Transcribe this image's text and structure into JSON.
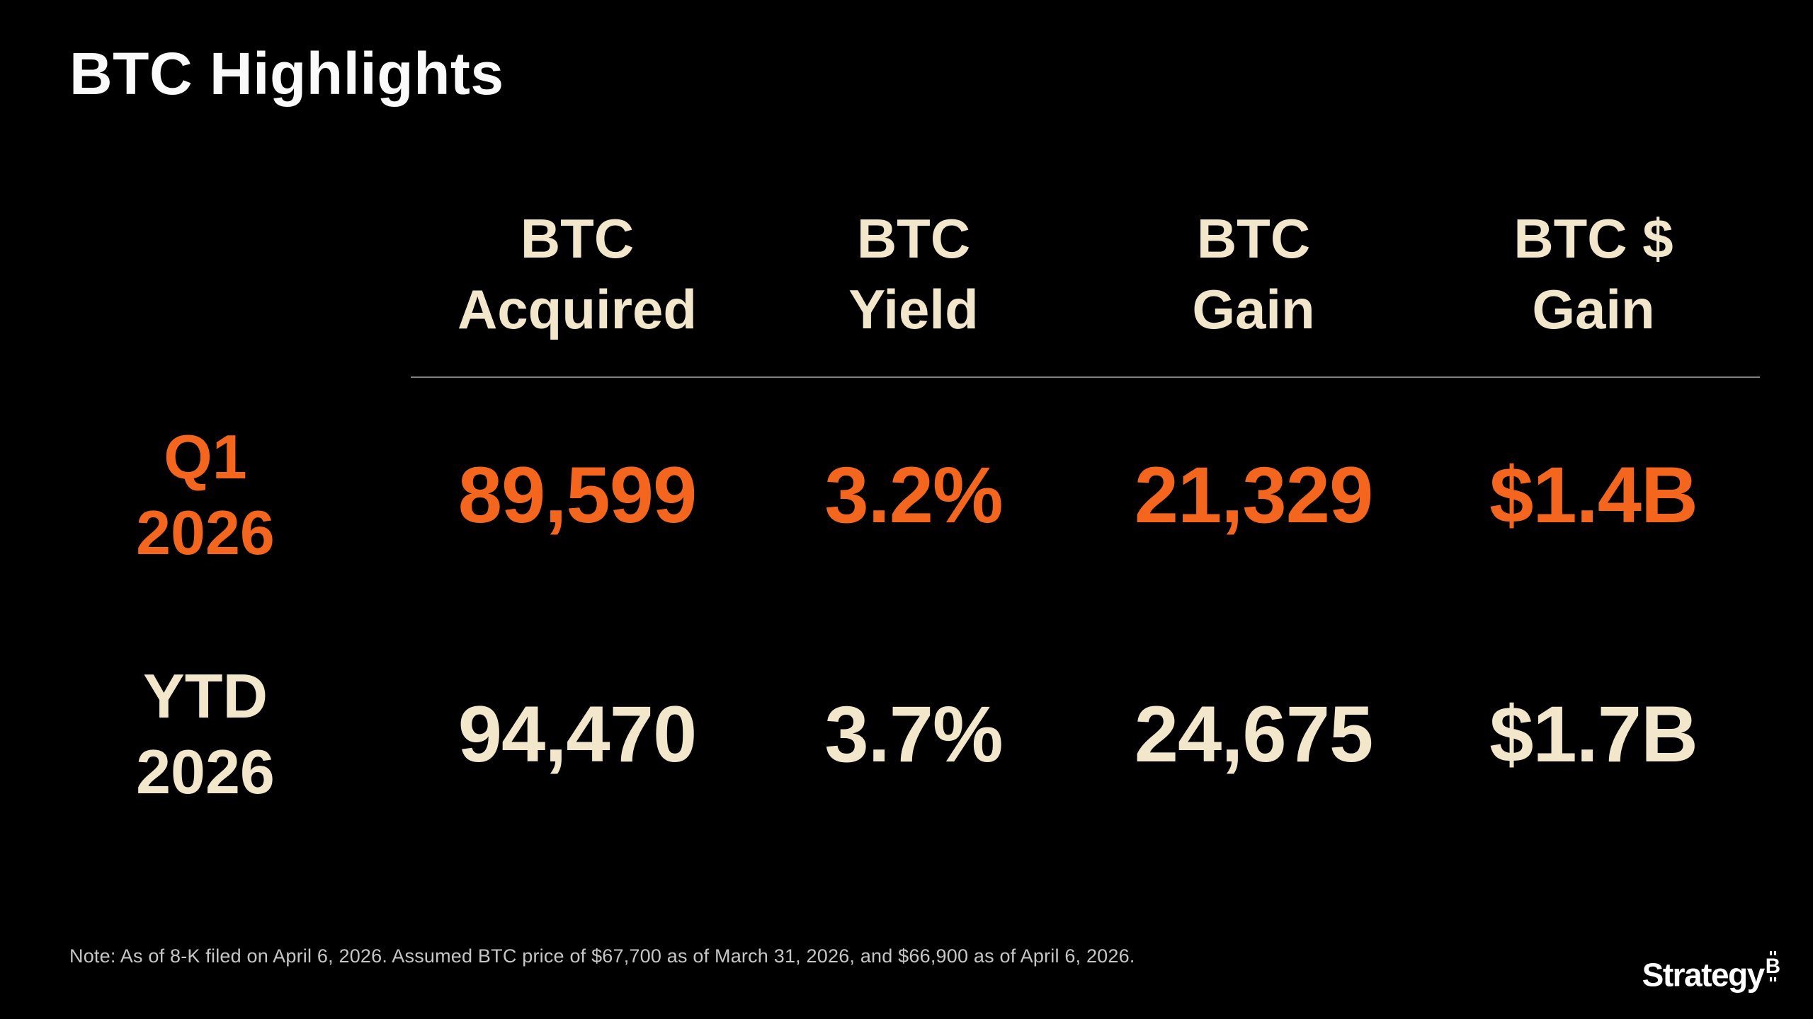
{
  "title": "BTC Highlights",
  "colors": {
    "background": "#000000",
    "title_text": "#FAFAFA",
    "header_text": "#F2E6CB",
    "q1_row": "#F4661E",
    "ytd_row": "#F2E6CB",
    "divider": "#7F7F7F",
    "footnote_text": "#C6C6C6"
  },
  "table": {
    "columns": [
      {
        "line1": "BTC",
        "line2": "Acquired"
      },
      {
        "line1": "BTC",
        "line2": "Yield"
      },
      {
        "line1": "BTC",
        "line2": "Gain"
      },
      {
        "line1": "BTC $",
        "line2": "Gain"
      }
    ],
    "rows": [
      {
        "label_line1": "Q1",
        "label_line2": "2026",
        "color": "#F4661E",
        "values": [
          "89,599",
          "3.2%",
          "21,329",
          "$1.4B"
        ]
      },
      {
        "label_line1": "YTD",
        "label_line2": "2026",
        "color": "#F2E6CB",
        "values": [
          "94,470",
          "3.7%",
          "24,675",
          "$1.7B"
        ]
      }
    ]
  },
  "chart_data": {
    "type": "table",
    "title": "BTC Highlights",
    "categories": [
      "BTC Acquired",
      "BTC Yield",
      "BTC Gain",
      "BTC $ Gain"
    ],
    "series": [
      {
        "name": "Q1 2026",
        "values": [
          "89,599",
          "3.2%",
          "21,329",
          "$1.4B"
        ]
      },
      {
        "name": "YTD 2026",
        "values": [
          "94,470",
          "3.7%",
          "24,675",
          "$1.7B"
        ]
      }
    ]
  },
  "note": {
    "text": "Note: As of 8-K filed on April 6, 2026. Assumed BTC price of $67,700 as of March 31, 2026, and $66,900 as of April 6, 2026."
  },
  "logo": {
    "text": "Strategy",
    "symbol": "B"
  }
}
